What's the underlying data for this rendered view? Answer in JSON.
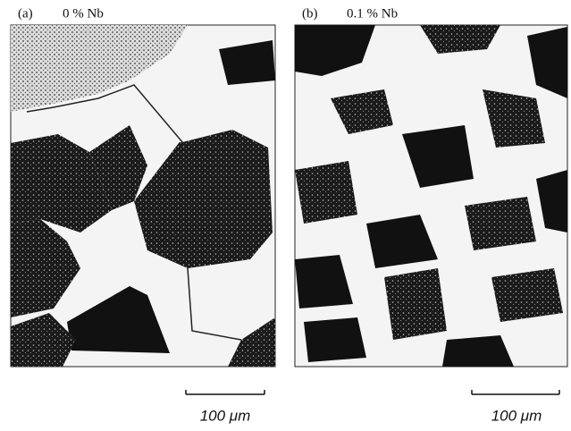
{
  "panels": [
    {
      "label": "(a)",
      "caption": "0 % Nb",
      "scale_bar": "100 μm"
    },
    {
      "label": "(b)",
      "caption": "0.1 % Nb",
      "scale_bar": "100 μm"
    }
  ]
}
